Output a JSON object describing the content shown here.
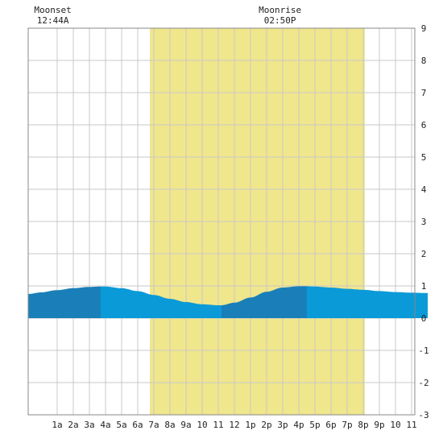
{
  "chart_data": {
    "type": "area",
    "title": "",
    "xlabel": "",
    "ylabel": "",
    "x_ticks": [
      "1a",
      "2a",
      "3a",
      "4a",
      "5a",
      "6a",
      "7a",
      "8a",
      "9a",
      "10",
      "11",
      "12",
      "1p",
      "2p",
      "3p",
      "4p",
      "5p",
      "6p",
      "7p",
      "8p",
      "9p",
      "10",
      "11"
    ],
    "y_ticks": [
      "9",
      "8",
      "7",
      "6",
      "5",
      "4",
      "3",
      "2",
      "1",
      "0",
      "-1",
      "-2",
      "-3"
    ],
    "ylim": [
      -3,
      9
    ],
    "xlim_hours": [
      -0.8,
      24.0
    ],
    "grid": true,
    "moon_events": [
      {
        "label": "Moonset",
        "time": "12:44A",
        "hour": 0.73
      },
      {
        "label": "Moonrise",
        "time": "02:50P",
        "hour": 14.83
      }
    ],
    "daylight": {
      "start_hour": 6.75,
      "end_hour": 20.1,
      "color": "#f0e68c"
    },
    "series": [
      {
        "hours": [
          -0.8,
          0,
          1,
          2,
          3,
          3.7,
          4,
          5,
          6,
          7,
          8,
          9,
          10,
          11,
          11.2,
          12,
          13,
          14,
          15,
          16,
          16.5,
          17,
          18,
          19,
          20,
          21,
          22,
          23,
          24
        ],
        "values": [
          0.75,
          0.8,
          0.87,
          0.93,
          0.97,
          0.98,
          0.98,
          0.93,
          0.84,
          0.72,
          0.6,
          0.5,
          0.43,
          0.4,
          0.4,
          0.48,
          0.64,
          0.82,
          0.95,
          0.99,
          0.99,
          0.98,
          0.95,
          0.91,
          0.88,
          0.84,
          0.81,
          0.79,
          0.78
        ]
      }
    ],
    "band_boundaries_hours": [
      3.7,
      11.2,
      16.5,
      24.0
    ],
    "colors": {
      "dark_band": "#1a7fb8",
      "light_band": "#0a9ad8",
      "grid": "#c8c8c8",
      "frame": "#888888"
    }
  }
}
